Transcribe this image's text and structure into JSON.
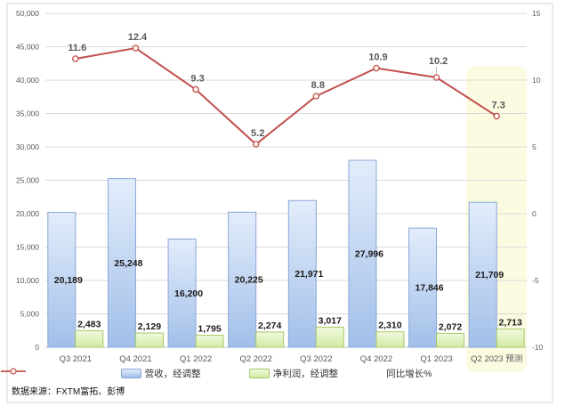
{
  "frame": {
    "background": "#ffffff",
    "border_color": "#d6d6d6"
  },
  "source_note": "数据来源：FXTM富拓、彭博",
  "colors": {
    "revenue_fill_top": "#e3edfb",
    "revenue_fill_bottom": "#a2bfe9",
    "revenue_border": "#87a7d8",
    "profit_fill_top": "#f0f9e0",
    "profit_fill_bottom": "#d3eaa2",
    "profit_border": "#a7c868",
    "growth_line": "#c0504d",
    "marker_fill": "#fdf4f3",
    "grid": "#d9d9d9",
    "axis_text": "#595959",
    "bar_label_text": "#1a1a1a",
    "line_label_text": "#595959",
    "forecast_highlight": "#fbfbe2"
  },
  "chart_data": {
    "type": "bar+line combo",
    "categories": [
      "Q3 2021",
      "Q4 2021",
      "Q1 2022",
      "Q2 2022",
      "Q3 2022",
      "Q4 2022",
      "Q1 2023",
      "Q2 2023 预测"
    ],
    "series": [
      {
        "name": "营收，经调整",
        "type": "bar",
        "axis": "left",
        "values": [
          20189,
          25248,
          16200,
          20225,
          21971,
          27996,
          17846,
          21709
        ],
        "labels": [
          "20,189",
          "25,248",
          "16,200",
          "20,225",
          "21,971",
          "27,996",
          "17,846",
          "21,709"
        ]
      },
      {
        "name": "净利润，经调整",
        "type": "bar",
        "axis": "left",
        "values": [
          2483,
          2129,
          1795,
          2274,
          3017,
          2310,
          2072,
          2713
        ],
        "labels": [
          "2,483",
          "2,129",
          "1,795",
          "2,274",
          "3,017",
          "2,310",
          "2,072",
          "2,713"
        ]
      },
      {
        "name": "同比增长%",
        "type": "line",
        "axis": "right",
        "values": [
          11.6,
          12.4,
          9.3,
          5.2,
          8.8,
          10.9,
          10.2,
          7.3
        ],
        "labels": [
          "11.6",
          "12.4",
          "9.3",
          "5.2",
          "8.8",
          "10.9",
          "10.2",
          "7.3"
        ]
      }
    ],
    "left_axis": {
      "min": 0,
      "max": 50000,
      "step": 5000,
      "tick_labels": [
        "0",
        "5,000",
        "10,000",
        "15,000",
        "20,000",
        "25,000",
        "30,000",
        "35,000",
        "40,000",
        "45,000",
        "50,000"
      ]
    },
    "right_axis": {
      "min": -10,
      "max": 15,
      "step": 5,
      "tick_labels": [
        "-10",
        "-5",
        "0",
        "5",
        "10",
        "15"
      ]
    },
    "grid": true,
    "legend_position": "bottom",
    "highlight": {
      "category_index": 7,
      "color": "#fbfbe2"
    }
  }
}
